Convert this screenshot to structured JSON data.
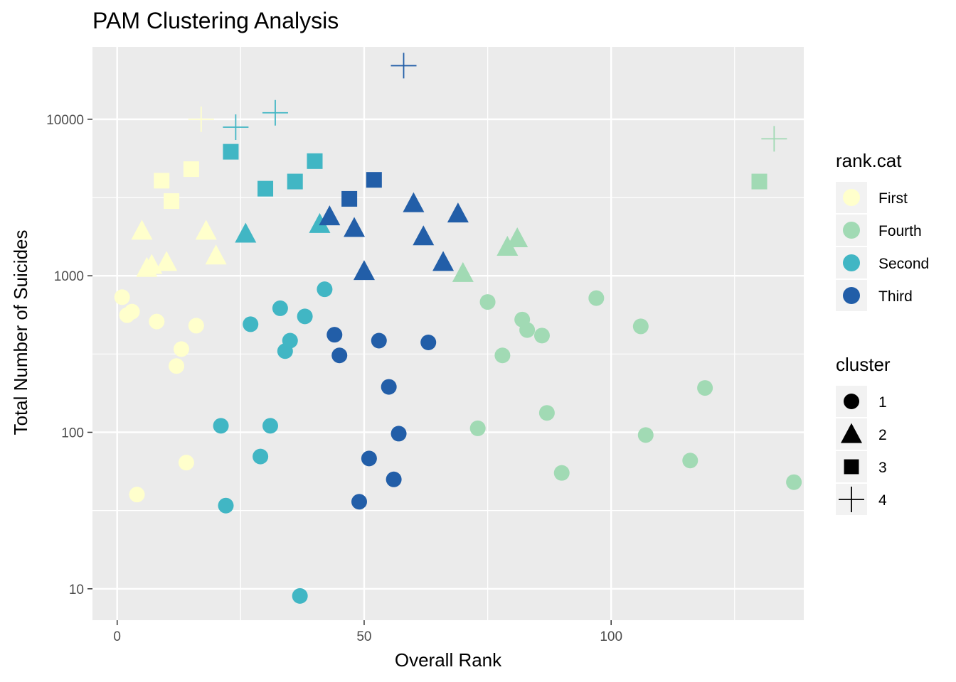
{
  "chart_data": {
    "type": "scatter",
    "title": "PAM Clustering Analysis",
    "xlabel": "Overall Rank",
    "ylabel": "Total Number of Suicides",
    "xlim": [
      -5,
      139
    ],
    "ylim": [
      6.3,
      29000
    ],
    "y_scale": "log10",
    "x_ticks": [
      0,
      50,
      100
    ],
    "x_tick_labels": [
      "0",
      "50",
      "100"
    ],
    "y_ticks": [
      10,
      100,
      1000,
      10000
    ],
    "y_tick_labels": [
      "10",
      "100",
      "1000",
      "10000"
    ],
    "grid": true,
    "legend_position": "right",
    "colors": {
      "First": "#ffffcc",
      "Fourth": "#a1dab4",
      "Second": "#41b6c4",
      "Third": "#225ea8"
    },
    "legend_color": {
      "title": "rank.cat",
      "entries": [
        "First",
        "Fourth",
        "Second",
        "Third"
      ]
    },
    "legend_shape": {
      "title": "cluster",
      "entries": [
        "1",
        "2",
        "3",
        "4"
      ],
      "shape_names": [
        "circle",
        "triangle",
        "square",
        "plus"
      ]
    },
    "points": [
      {
        "x": 1,
        "y": 730,
        "cat": "First",
        "cluster": 1
      },
      {
        "x": 2,
        "y": 560,
        "cat": "First",
        "cluster": 1
      },
      {
        "x": 3,
        "y": 590,
        "cat": "First",
        "cluster": 1
      },
      {
        "x": 4,
        "y": 40,
        "cat": "First",
        "cluster": 1
      },
      {
        "x": 8,
        "y": 510,
        "cat": "First",
        "cluster": 1
      },
      {
        "x": 12,
        "y": 265,
        "cat": "First",
        "cluster": 1
      },
      {
        "x": 13,
        "y": 340,
        "cat": "First",
        "cluster": 1
      },
      {
        "x": 14,
        "y": 64,
        "cat": "First",
        "cluster": 1
      },
      {
        "x": 16,
        "y": 480,
        "cat": "First",
        "cluster": 1
      },
      {
        "x": 5,
        "y": 1900,
        "cat": "First",
        "cluster": 2
      },
      {
        "x": 6,
        "y": 1100,
        "cat": "First",
        "cluster": 2
      },
      {
        "x": 7,
        "y": 1150,
        "cat": "First",
        "cluster": 2
      },
      {
        "x": 10,
        "y": 1200,
        "cat": "First",
        "cluster": 2
      },
      {
        "x": 18,
        "y": 1900,
        "cat": "First",
        "cluster": 2
      },
      {
        "x": 20,
        "y": 1320,
        "cat": "First",
        "cluster": 2
      },
      {
        "x": 9,
        "y": 4050,
        "cat": "First",
        "cluster": 3
      },
      {
        "x": 11,
        "y": 3000,
        "cat": "First",
        "cluster": 3
      },
      {
        "x": 15,
        "y": 4800,
        "cat": "First",
        "cluster": 3
      },
      {
        "x": 17,
        "y": 10000,
        "cat": "First",
        "cluster": 4
      },
      {
        "x": 21,
        "y": 110,
        "cat": "Second",
        "cluster": 1
      },
      {
        "x": 22,
        "y": 34,
        "cat": "Second",
        "cluster": 1
      },
      {
        "x": 27,
        "y": 490,
        "cat": "Second",
        "cluster": 1
      },
      {
        "x": 29,
        "y": 70,
        "cat": "Second",
        "cluster": 1
      },
      {
        "x": 31,
        "y": 110,
        "cat": "Second",
        "cluster": 1
      },
      {
        "x": 33,
        "y": 620,
        "cat": "Second",
        "cluster": 1
      },
      {
        "x": 34,
        "y": 330,
        "cat": "Second",
        "cluster": 1
      },
      {
        "x": 35,
        "y": 385,
        "cat": "Second",
        "cluster": 1
      },
      {
        "x": 37,
        "y": 9,
        "cat": "Second",
        "cluster": 1
      },
      {
        "x": 38,
        "y": 550,
        "cat": "Second",
        "cluster": 1
      },
      {
        "x": 42,
        "y": 820,
        "cat": "Second",
        "cluster": 1
      },
      {
        "x": 26,
        "y": 1820,
        "cat": "Second",
        "cluster": 2
      },
      {
        "x": 41,
        "y": 2100,
        "cat": "Second",
        "cluster": 2
      },
      {
        "x": 23,
        "y": 6200,
        "cat": "Second",
        "cluster": 3
      },
      {
        "x": 30,
        "y": 3600,
        "cat": "Second",
        "cluster": 3
      },
      {
        "x": 36,
        "y": 4000,
        "cat": "Second",
        "cluster": 3
      },
      {
        "x": 40,
        "y": 5400,
        "cat": "Second",
        "cluster": 3
      },
      {
        "x": 24,
        "y": 8900,
        "cat": "Second",
        "cluster": 4
      },
      {
        "x": 32,
        "y": 11000,
        "cat": "Second",
        "cluster": 4
      },
      {
        "x": 44,
        "y": 420,
        "cat": "Third",
        "cluster": 1
      },
      {
        "x": 45,
        "y": 310,
        "cat": "Third",
        "cluster": 1
      },
      {
        "x": 49,
        "y": 36,
        "cat": "Third",
        "cluster": 1
      },
      {
        "x": 51,
        "y": 68,
        "cat": "Third",
        "cluster": 1
      },
      {
        "x": 53,
        "y": 385,
        "cat": "Third",
        "cluster": 1
      },
      {
        "x": 55,
        "y": 195,
        "cat": "Third",
        "cluster": 1
      },
      {
        "x": 56,
        "y": 50,
        "cat": "Third",
        "cluster": 1
      },
      {
        "x": 57,
        "y": 98,
        "cat": "Third",
        "cluster": 1
      },
      {
        "x": 63,
        "y": 375,
        "cat": "Third",
        "cluster": 1
      },
      {
        "x": 43,
        "y": 2350,
        "cat": "Third",
        "cluster": 2
      },
      {
        "x": 48,
        "y": 1980,
        "cat": "Third",
        "cluster": 2
      },
      {
        "x": 50,
        "y": 1050,
        "cat": "Third",
        "cluster": 2
      },
      {
        "x": 60,
        "y": 2850,
        "cat": "Third",
        "cluster": 2
      },
      {
        "x": 62,
        "y": 1750,
        "cat": "Third",
        "cluster": 2
      },
      {
        "x": 66,
        "y": 1200,
        "cat": "Third",
        "cluster": 2
      },
      {
        "x": 69,
        "y": 2450,
        "cat": "Third",
        "cluster": 2
      },
      {
        "x": 47,
        "y": 3100,
        "cat": "Third",
        "cluster": 3
      },
      {
        "x": 52,
        "y": 4100,
        "cat": "Third",
        "cluster": 3
      },
      {
        "x": 58,
        "y": 22000,
        "cat": "Third",
        "cluster": 4
      },
      {
        "x": 73,
        "y": 106,
        "cat": "Fourth",
        "cluster": 1
      },
      {
        "x": 75,
        "y": 680,
        "cat": "Fourth",
        "cluster": 1
      },
      {
        "x": 78,
        "y": 310,
        "cat": "Fourth",
        "cluster": 1
      },
      {
        "x": 82,
        "y": 525,
        "cat": "Fourth",
        "cluster": 1
      },
      {
        "x": 83,
        "y": 450,
        "cat": "Fourth",
        "cluster": 1
      },
      {
        "x": 86,
        "y": 415,
        "cat": "Fourth",
        "cluster": 1
      },
      {
        "x": 87,
        "y": 133,
        "cat": "Fourth",
        "cluster": 1
      },
      {
        "x": 90,
        "y": 55,
        "cat": "Fourth",
        "cluster": 1
      },
      {
        "x": 97,
        "y": 720,
        "cat": "Fourth",
        "cluster": 1
      },
      {
        "x": 106,
        "y": 475,
        "cat": "Fourth",
        "cluster": 1
      },
      {
        "x": 107,
        "y": 96,
        "cat": "Fourth",
        "cluster": 1
      },
      {
        "x": 116,
        "y": 66,
        "cat": "Fourth",
        "cluster": 1
      },
      {
        "x": 119,
        "y": 192,
        "cat": "Fourth",
        "cluster": 1
      },
      {
        "x": 137,
        "y": 48,
        "cat": "Fourth",
        "cluster": 1
      },
      {
        "x": 70,
        "y": 1020,
        "cat": "Fourth",
        "cluster": 2
      },
      {
        "x": 79,
        "y": 1500,
        "cat": "Fourth",
        "cluster": 2
      },
      {
        "x": 81,
        "y": 1700,
        "cat": "Fourth",
        "cluster": 2
      },
      {
        "x": 130,
        "y": 4000,
        "cat": "Fourth",
        "cluster": 3
      },
      {
        "x": 133,
        "y": 7500,
        "cat": "Fourth",
        "cluster": 4
      }
    ]
  }
}
